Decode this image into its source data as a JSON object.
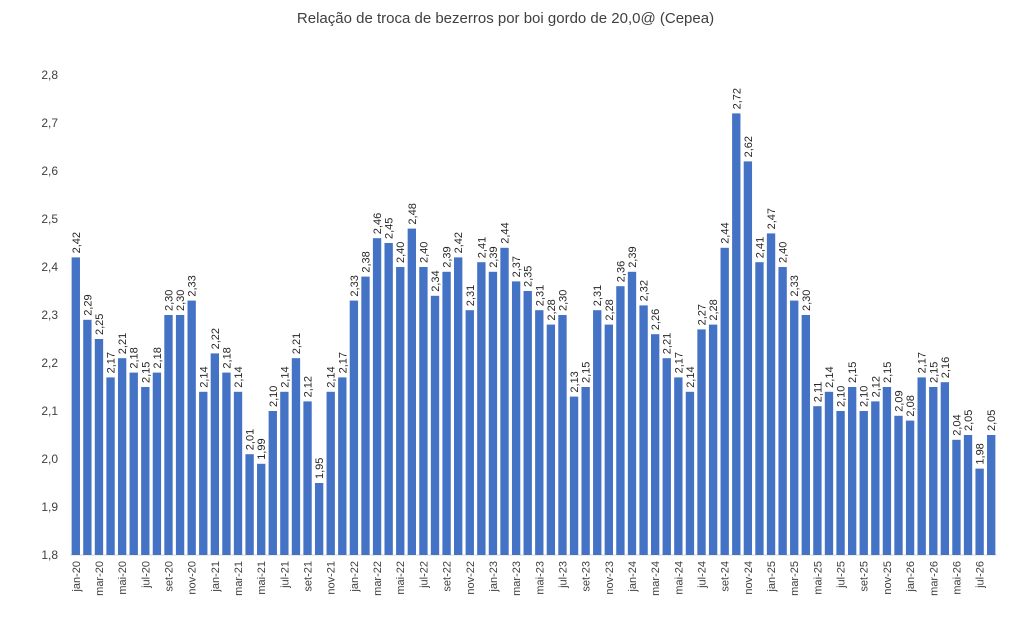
{
  "chart_data": {
    "type": "bar",
    "title": "Relação de troca de bezerros por boi gordo de 20,0@ (Cepea)",
    "xlabel": "",
    "ylabel": "",
    "ylim": [
      1.8,
      2.8
    ],
    "yticks": [
      "1,8",
      "1,9",
      "2,0",
      "2,1",
      "2,2",
      "2,3",
      "2,4",
      "2,5",
      "2,6",
      "2,7",
      "2,8"
    ],
    "grid": false,
    "legend": "none",
    "bar_color": "#4472C4",
    "categories": [
      "jan-20",
      "fev-20",
      "mar-20",
      "abr-20",
      "mai-20",
      "jun-20",
      "jul-20",
      "ago-20",
      "set-20",
      "out-20",
      "nov-20",
      "dez-20",
      "jan-21",
      "fev-21",
      "mar-21",
      "abr-21",
      "mai-21",
      "jun-21",
      "jul-21",
      "ago-21",
      "set-21",
      "out-21",
      "nov-21",
      "dez-21",
      "jan-22",
      "fev-22",
      "mar-22",
      "abr-22",
      "mai-22",
      "jun-22",
      "jul-22",
      "ago-22",
      "set-22",
      "out-22",
      "nov-22",
      "dez-22",
      "jan-23",
      "fev-23",
      "mar-23",
      "abr-23",
      "mai-23",
      "jun-23",
      "jul-23",
      "ago-23",
      "set-23",
      "out-23",
      "nov-23",
      "dez-23",
      "jan-24",
      "fev-24",
      "mar-24",
      "abr-24",
      "mai-24",
      "jun-24",
      "jul-24",
      "ago-24",
      "set-24",
      "out-24",
      "nov-24",
      "dez-24",
      "jan-25",
      "fev-25",
      "mar-25",
      "abr-25",
      "mai-25",
      "jun-25",
      "jul-25",
      "ago-25",
      "set-25",
      "out-25",
      "nov-25",
      "dez-25",
      "jan-26",
      "fev-26",
      "mar-26",
      "abr-26",
      "mai-26",
      "jun-26",
      "jul-26",
      "ago-26"
    ],
    "values": [
      2.42,
      2.29,
      2.25,
      2.17,
      2.21,
      2.18,
      2.15,
      2.18,
      2.3,
      2.3,
      2.33,
      2.14,
      2.22,
      2.18,
      2.14,
      2.01,
      1.99,
      2.1,
      2.14,
      2.21,
      2.12,
      1.95,
      2.14,
      2.17,
      2.33,
      2.38,
      2.46,
      2.45,
      2.4,
      2.48,
      2.4,
      2.34,
      2.39,
      2.42,
      2.31,
      2.41,
      2.39,
      2.44,
      2.37,
      2.35,
      2.31,
      2.28,
      2.3,
      2.13,
      2.15,
      2.31,
      2.28,
      2.36,
      2.39,
      2.32,
      2.26,
      2.21,
      2.17,
      2.14,
      2.27,
      2.28,
      2.44,
      2.72,
      2.62,
      2.41,
      2.47,
      2.4,
      2.33,
      2.3,
      2.11,
      2.14,
      2.1,
      2.15,
      2.1,
      2.12,
      2.15,
      2.09,
      2.08,
      2.17,
      2.15,
      2.16,
      2.04,
      2.05,
      1.98,
      2.05
    ],
    "data_labels": [
      "2,42",
      "2,29",
      "2,25",
      "2,17",
      "2,21",
      "2,18",
      "2,15",
      "2,18",
      "2,30",
      "2,30",
      "2,33",
      "2,14",
      "2,22",
      "2,18",
      "2,14",
      "2,01",
      "1,99",
      "2,10",
      "2,14",
      "2,21",
      "2,12",
      "1,95",
      "2,14",
      "2,17",
      "2,33",
      "2,38",
      "2,46",
      "2,45",
      "2,40",
      "2,48",
      "2,40",
      "2,34",
      "2,39",
      "2,42",
      "2,31",
      "2,41",
      "2,39",
      "2,44",
      "2,37",
      "2,35",
      "2,31",
      "2,28",
      "2,30",
      "2,13",
      "2,15",
      "2,31",
      "2,28",
      "2,36",
      "2,39",
      "2,32",
      "2,26",
      "2,21",
      "2,17",
      "2,14",
      "2,27",
      "2,28",
      "2,44",
      "2,72",
      "2,62",
      "2,41",
      "2,47",
      "2,40",
      "2,33",
      "2,30",
      "2,11",
      "2,14",
      "2,10",
      "2,15",
      "2,10",
      "2,12",
      "2,15",
      "2,09",
      "2,08",
      "2,17",
      "2,15",
      "2,16",
      "2,04",
      "2,05",
      "1,98",
      "2,05"
    ],
    "x_tick_labels_shown": [
      "jan-20",
      "mar-20",
      "mai-20",
      "jul-20",
      "set-20",
      "nov-20",
      "jan-21",
      "mar-21",
      "mai-21",
      "jul-21",
      "set-21",
      "nov-21",
      "jan-22",
      "mar-22",
      "mai-22",
      "jul-22",
      "set-22",
      "nov-22",
      "jan-23",
      "mar-23",
      "mai-23",
      "jul-23",
      "set-23",
      "nov-23",
      "jan-24",
      "mar-24",
      "mai-24",
      "jul-24",
      "set-24",
      "nov-24",
      "jan-25",
      "mar-25",
      "mai-25",
      "jul-25",
      "set-25",
      "nov-25",
      "jan-26",
      "mar-26",
      "mai-26",
      "jul-26"
    ]
  }
}
